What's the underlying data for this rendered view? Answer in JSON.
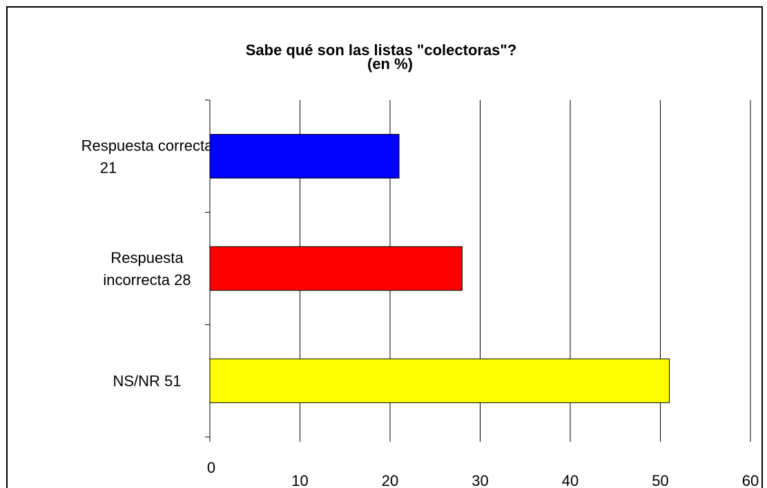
{
  "chart_data": {
    "type": "barh",
    "title": "Sabe qué son las listas \"colectoras\"?",
    "subtitle": "(en %)",
    "categories": [
      [
        "Respuesta correcta",
        "21"
      ],
      [
        "Respuesta",
        "incorrecta  28"
      ],
      [
        "NS/NR  51"
      ]
    ],
    "values": [
      21,
      28,
      51
    ],
    "colors": [
      "#0000ff",
      "#ff0000",
      "#ffff00"
    ],
    "xlim": [
      0,
      60
    ],
    "xticks": [
      0,
      10,
      20,
      30,
      40,
      50,
      60
    ],
    "grid": true
  }
}
